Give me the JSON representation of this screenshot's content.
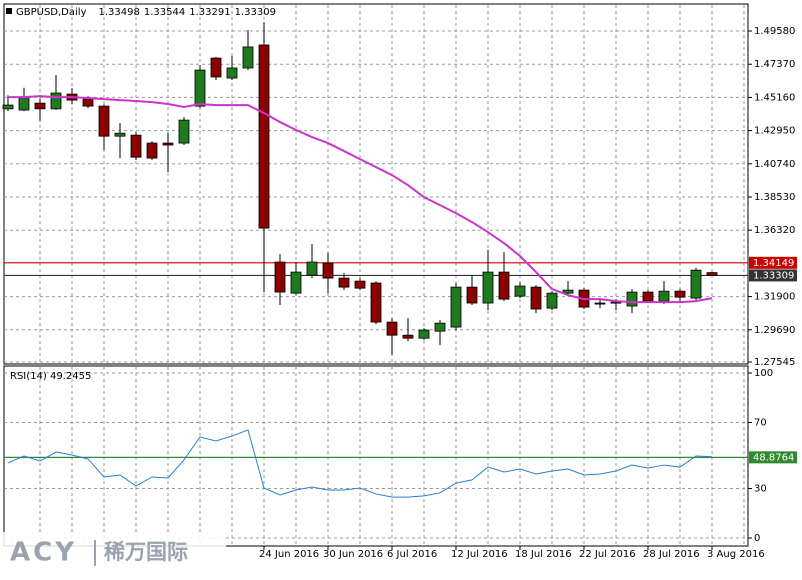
{
  "chart_data": [
    {
      "type": "candlestick",
      "title": "GBPUSD,Daily",
      "header_values": [
        1.33498,
        1.33544,
        1.33291,
        1.33309
      ],
      "categories": [
        null,
        null,
        null,
        null,
        null,
        null,
        null,
        null,
        null,
        null,
        null,
        null,
        null,
        null,
        null,
        null,
        "24 Jun 2016",
        null,
        null,
        null,
        "30 Jun 2016",
        null,
        null,
        null,
        "6 Jul 2016",
        null,
        null,
        null,
        "12 Jul 2016",
        null,
        null,
        null,
        "18 Jul 2016",
        null,
        null,
        null,
        "22 Jul 2016",
        null,
        null,
        null,
        "28 Jul 2016",
        null,
        null,
        null,
        "3 Aug 2016"
      ],
      "open": [
        1.444,
        1.4432,
        1.4478,
        1.444,
        1.4538,
        1.4505,
        1.4458,
        1.4258,
        1.4265,
        1.4212,
        1.4212,
        1.4212,
        1.4458,
        1.4778,
        1.4645,
        1.4712,
        1.4865,
        1.342,
        1.3213,
        1.3333,
        1.3413,
        1.3313,
        1.3293,
        1.328,
        1.302,
        1.2933,
        1.2913,
        1.296,
        1.2987,
        1.3253,
        1.3147,
        1.3353,
        1.3193,
        1.3253,
        1.3113,
        1.3213,
        1.3233,
        1.3147,
        1.3147,
        1.3127,
        1.322,
        1.316,
        1.3226,
        1.318,
        1.33498
      ],
      "high": [
        1.453,
        1.458,
        1.451,
        1.4665,
        1.4578,
        1.4525,
        1.447,
        1.4345,
        1.4285,
        1.4225,
        1.4278,
        1.4385,
        1.4732,
        1.4785,
        1.4792,
        1.4965,
        1.5018,
        1.3473,
        1.342,
        1.354,
        1.348,
        1.3346,
        1.3313,
        1.3293,
        1.3047,
        1.3047,
        1.298,
        1.3033,
        1.328,
        1.3333,
        1.35,
        1.3486,
        1.3286,
        1.3266,
        1.3226,
        1.3293,
        1.3246,
        1.318,
        1.3173,
        1.324,
        1.3233,
        1.3293,
        1.324,
        1.338,
        1.33544
      ],
      "low": [
        1.4425,
        1.4425,
        1.436,
        1.4432,
        1.447,
        1.4445,
        1.4165,
        1.4112,
        1.4099,
        1.4099,
        1.4019,
        1.4199,
        1.4445,
        1.4632,
        1.4632,
        1.4698,
        1.322,
        1.3134,
        1.32,
        1.3313,
        1.3213,
        1.3233,
        1.3233,
        1.3007,
        1.28,
        1.2893,
        1.29,
        1.2867,
        1.2967,
        1.3134,
        1.31,
        1.316,
        1.318,
        1.308,
        1.31,
        1.3193,
        1.3107,
        1.3113,
        1.31,
        1.308,
        1.3147,
        1.314,
        1.3153,
        1.3166,
        1.33291
      ],
      "close": [
        1.4465,
        1.4518,
        1.444,
        1.4545,
        1.4498,
        1.4458,
        1.4258,
        1.4278,
        1.4118,
        1.4112,
        1.4199,
        1.4365,
        1.4698,
        1.4652,
        1.4712,
        1.4852,
        1.3646,
        1.322,
        1.3353,
        1.342,
        1.3313,
        1.3253,
        1.3246,
        1.302,
        1.2933,
        1.2913,
        1.2967,
        1.3013,
        1.3253,
        1.3147,
        1.3353,
        1.3173,
        1.326,
        1.3107,
        1.3213,
        1.3233,
        1.312,
        1.314,
        1.3153,
        1.322,
        1.316,
        1.3226,
        1.3186,
        1.3366,
        1.33309
      ],
      "up_color": "#1f7a1f",
      "down_color": "#8b0000",
      "overlay": {
        "color": "#cc33cc",
        "values": [
          1.4518,
          1.4518,
          1.4525,
          1.4518,
          1.4518,
          1.4512,
          1.4505,
          1.4498,
          1.4492,
          1.4485,
          1.4472,
          1.4452,
          1.4472,
          1.4465,
          1.4465,
          1.4465,
          1.4412,
          1.4352,
          1.4299,
          1.4252,
          1.4212,
          1.4159,
          1.4105,
          1.4052,
          1.3999,
          1.3932,
          1.3852,
          1.3799,
          1.3746,
          1.3686,
          1.3619,
          1.3546,
          1.346,
          1.3353,
          1.324,
          1.32,
          1.3173,
          1.3173,
          1.316,
          1.3153,
          1.3153,
          1.3153,
          1.3153,
          1.316,
          1.318
        ]
      },
      "ylim": [
        1.27545,
        1.5138
      ],
      "yticks": [
        1.27545,
        {
          "value": 1.2969,
          "label": "1.29690"
        },
        {
          "value": 1.319,
          "label": "1.31900"
        },
        {
          "value": 1.3632,
          "label": "1.36320"
        },
        {
          "value": 1.3853,
          "label": "1.38530"
        },
        {
          "value": 1.4074,
          "label": "1.40740"
        },
        {
          "value": 1.4295,
          "label": "1.42950"
        },
        {
          "value": 1.4516,
          "label": "1.45160"
        },
        {
          "value": 1.4737,
          "label": "1.47370"
        },
        {
          "value": 1.4958,
          "label": "1.49580"
        }
      ],
      "hlines": [
        {
          "value": 1.34149,
          "color": "#cc0000"
        },
        {
          "value": 1.33309,
          "color": "#333333"
        }
      ],
      "grid": true
    },
    {
      "type": "line",
      "title": "RSI(14) 49.2455",
      "color": "#2a7fd4",
      "values": [
        45.5,
        49.7,
        46.7,
        52.1,
        50.3,
        47.9,
        37.0,
        38.2,
        31.5,
        37.0,
        36.4,
        47.3,
        61.2,
        58.8,
        61.8,
        65.5,
        30.3,
        26.1,
        29.1,
        30.9,
        29.1,
        29.1,
        30.3,
        26.7,
        24.8,
        24.8,
        25.5,
        27.3,
        33.3,
        35.2,
        43.0,
        40.0,
        41.8,
        38.8,
        40.6,
        41.8,
        38.2,
        38.8,
        40.6,
        44.2,
        42.4,
        44.2,
        43.0,
        49.7,
        49.2455
      ],
      "ylim": [
        0,
        100
      ],
      "yticks": [
        0,
        30,
        70,
        100
      ],
      "hlines": [
        {
          "value": 48.8764,
          "color": "#2e8b2e"
        }
      ],
      "grid": true
    }
  ],
  "watermark": {
    "brand": "ACY",
    "name": "稀万国际"
  }
}
